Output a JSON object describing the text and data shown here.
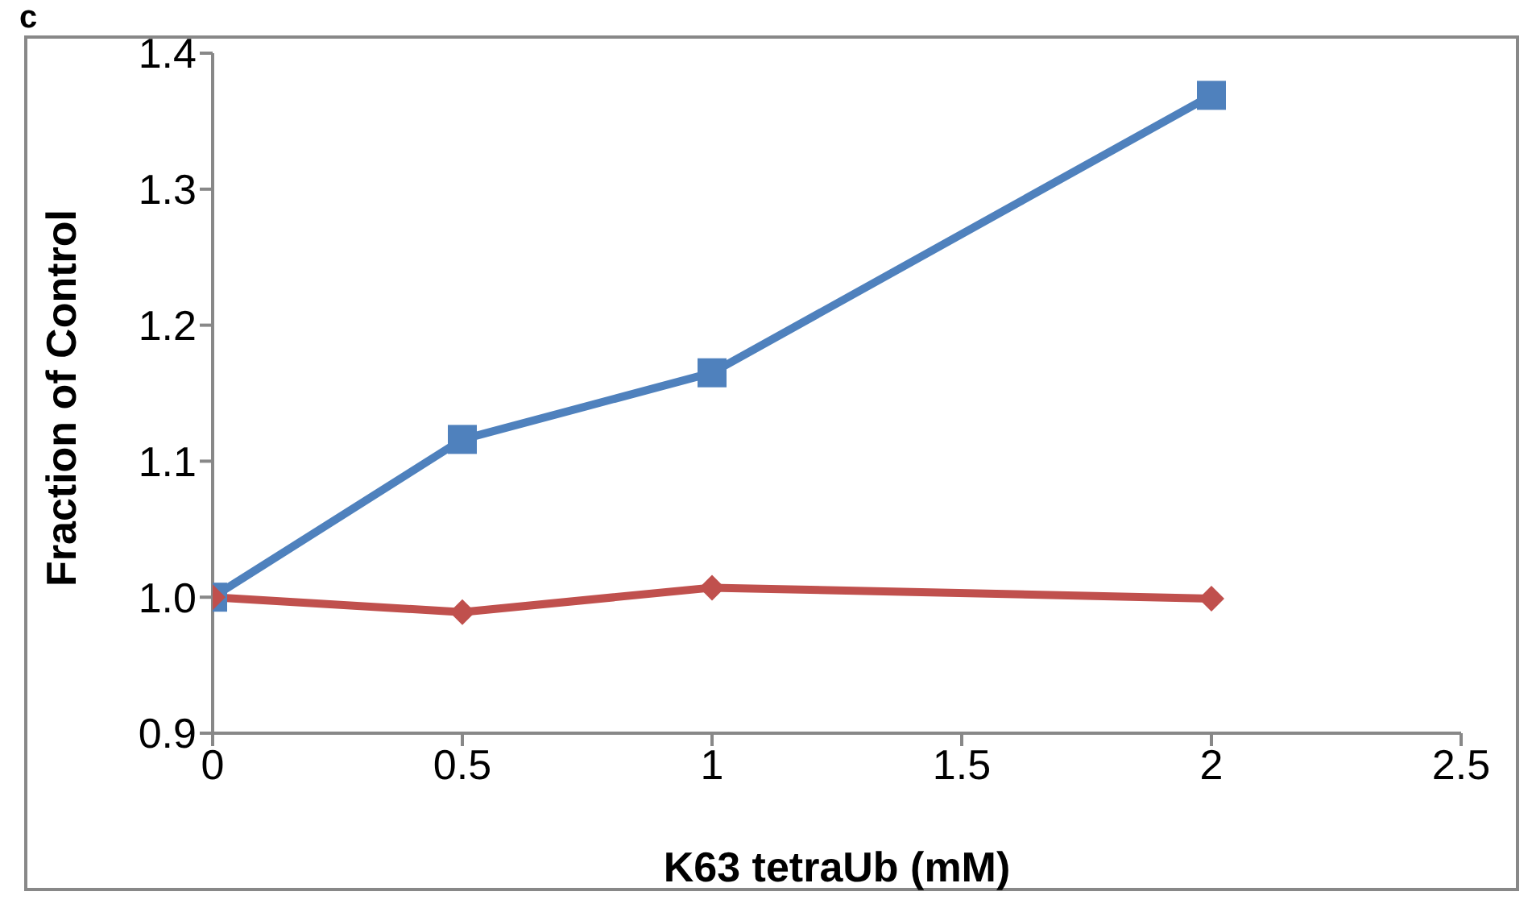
{
  "chart_data": {
    "type": "line",
    "annotations": [
      "c"
    ],
    "xlabel": "K63 tetraUb (mM)",
    "ylabel": "Fraction of Control",
    "x": [
      0,
      0.5,
      1,
      2
    ],
    "series": [
      {
        "color": "#4f81bd",
        "values": [
          1.0,
          1.116,
          1.165,
          1.369
        ],
        "marker": "square"
      },
      {
        "color": "#c0504d",
        "values": [
          1.0,
          0.989,
          1.007,
          0.999
        ],
        "marker": "diamond"
      }
    ],
    "xlim": [
      0,
      2.5
    ],
    "xticks": [
      0,
      0.5,
      1,
      1.5,
      2,
      2.5
    ],
    "ylim": [
      0.9,
      1.4
    ],
    "yticks": [
      {
        "value": 0.9,
        "label": "0.9"
      },
      {
        "value": 1,
        "label": "1.0"
      },
      1.1,
      1.2,
      1.3,
      1.4
    ],
    "grid": false,
    "legend": false
  }
}
